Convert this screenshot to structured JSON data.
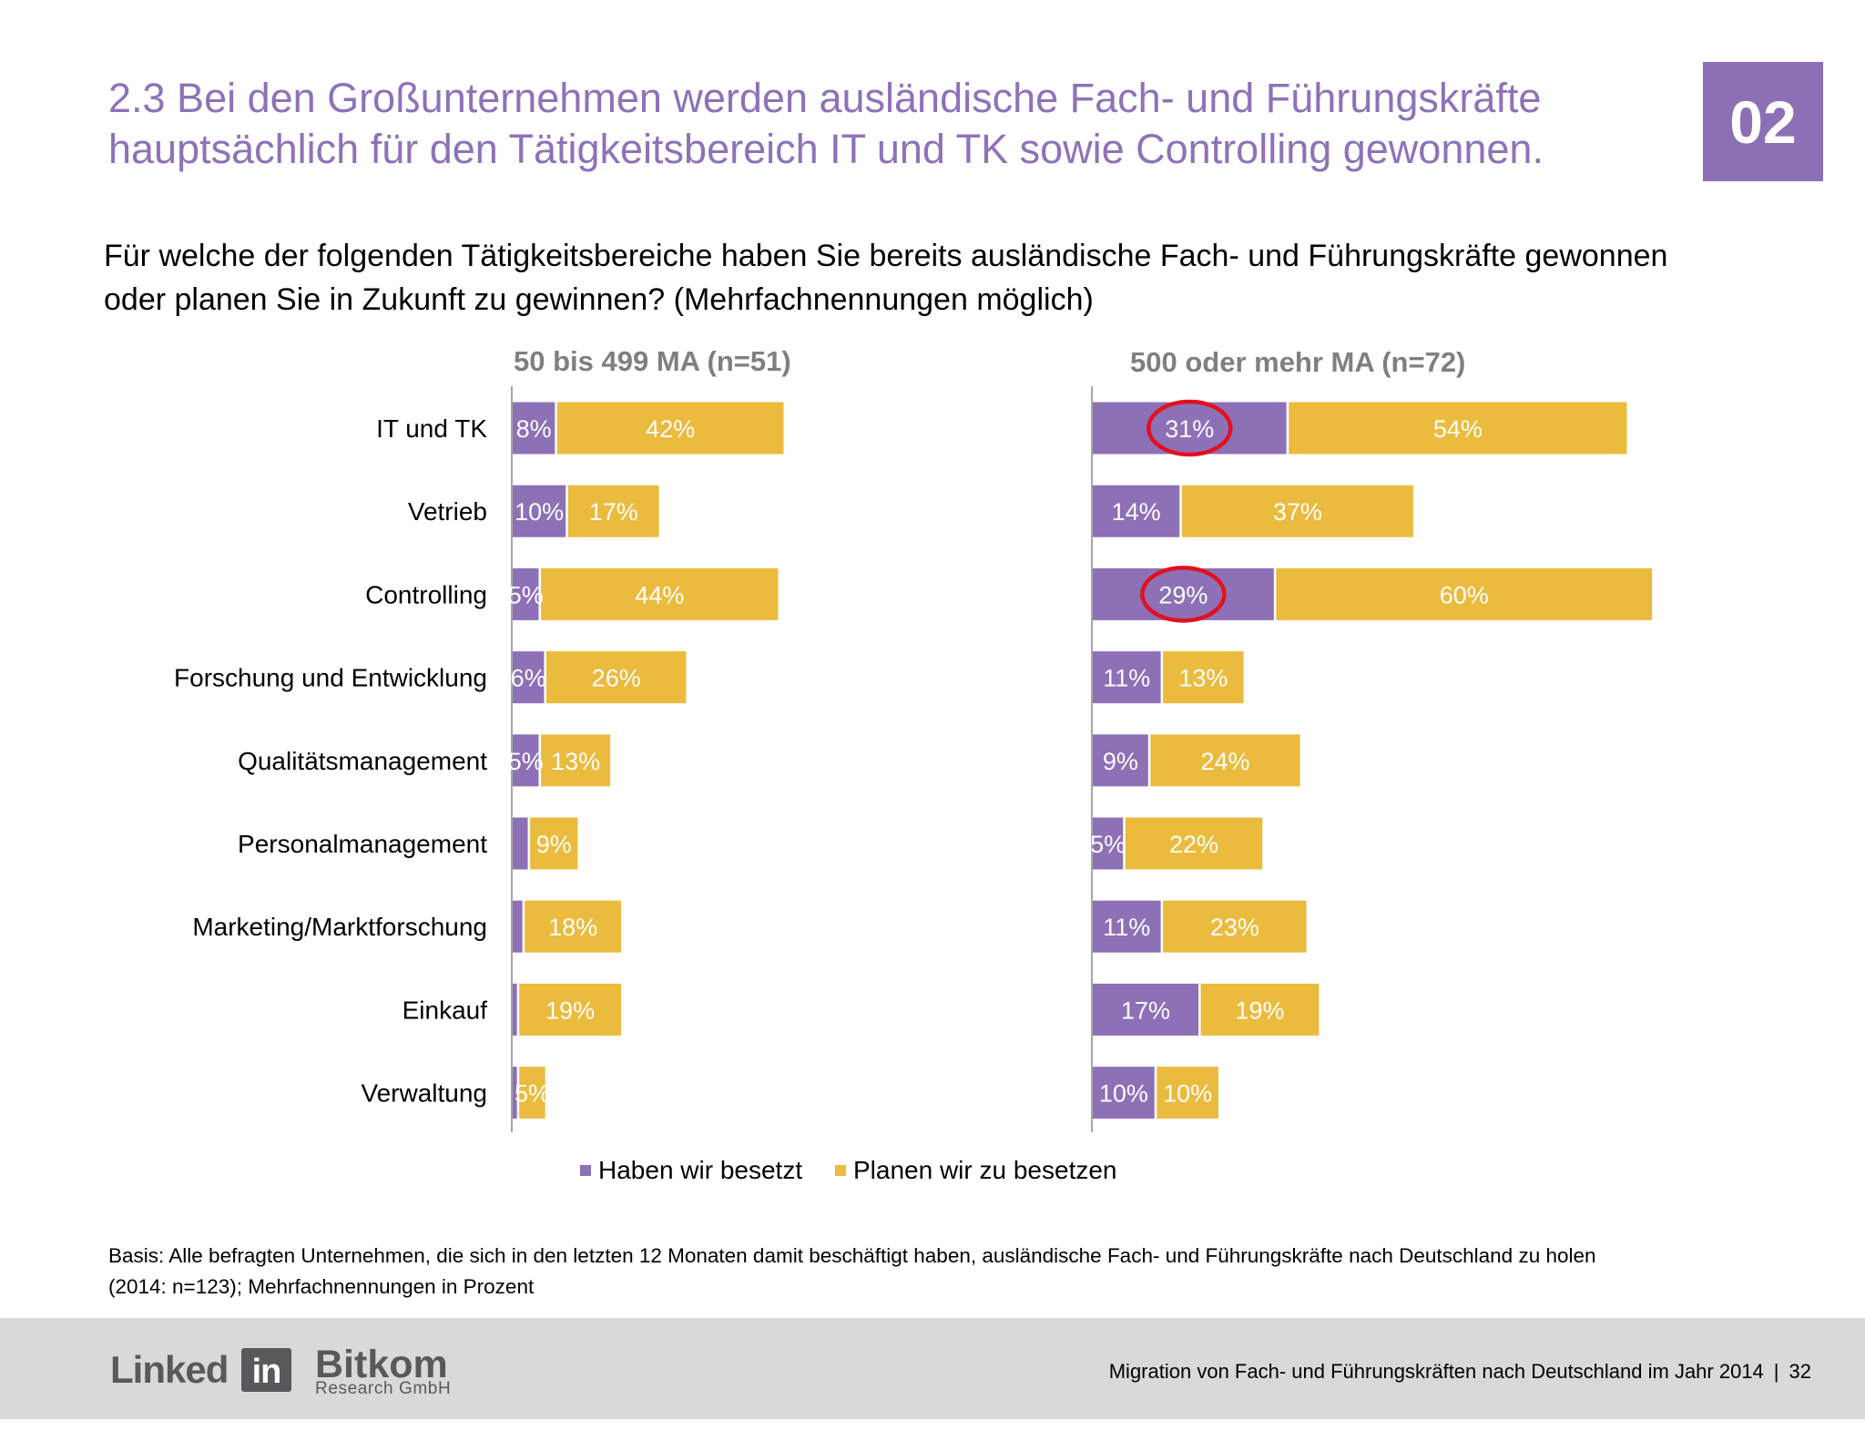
{
  "header": {
    "title_line1": "2.3 Bei den Großunternehmen werden ausländische Fach- und Führungskräfte",
    "title_line2": "hauptsächlich für den Tätigkeitsbereich IT und TK sowie Controlling gewonnen.",
    "section_badge": "02"
  },
  "question": {
    "line1": "Für welche der folgenden Tätigkeitsbereiche haben Sie bereits ausländische Fach- und Führungskräfte gewonnen",
    "line2": "oder planen Sie in Zukunft zu gewinnen? (Mehrfachnennungen möglich)"
  },
  "colors": {
    "accent_purple": "#8c6fb5",
    "haben": "#8e70b6",
    "planen": "#ebbb3e",
    "highlight_red": "#e2101d",
    "footer_band": "#d9d9d9"
  },
  "chart_data": {
    "type": "bar",
    "orientation": "horizontal",
    "stacked": true,
    "unit": "%",
    "legend": "bottom",
    "grid": false,
    "categories": [
      "IT und TK",
      "Vetrieb",
      "Controlling",
      "Forschung und Entwicklung",
      "Qualitätsmanagement",
      "Personalmanagement",
      "Marketing/Marktforschung",
      "Einkauf",
      "Verwaltung"
    ],
    "panels": [
      {
        "title": "50 bis 499 MA (n=51)",
        "xlim": [
          0,
          100
        ],
        "series": [
          {
            "name": "Haben wir besetzt",
            "values": [
              8,
              10,
              5,
              6,
              5,
              3,
              2,
              1,
              1
            ],
            "labels": [
              "8%",
              "10%",
              "5%",
              "6%",
              "5%",
              "",
              "",
              "",
              ""
            ]
          },
          {
            "name": "Planen wir zu besetzen",
            "values": [
              42,
              17,
              44,
              26,
              13,
              9,
              18,
              19,
              5
            ],
            "labels": [
              "42%",
              "17%",
              "44%",
              "26%",
              "13%",
              "9%",
              "18%",
              "19%",
              "5%"
            ]
          }
        ],
        "highlights": []
      },
      {
        "title": "500 oder mehr MA (n=72)",
        "xlim": [
          0,
          100
        ],
        "series": [
          {
            "name": "Haben wir besetzt",
            "values": [
              31,
              14,
              29,
              11,
              9,
              5,
              11,
              17,
              10
            ],
            "labels": [
              "31%",
              "14%",
              "29%",
              "11%",
              "9%",
              "5%",
              "11%",
              "17%",
              "10%"
            ]
          },
          {
            "name": "Planen wir zu besetzen",
            "values": [
              54,
              37,
              60,
              13,
              24,
              22,
              23,
              19,
              10
            ],
            "labels": [
              "54%",
              "37%",
              "60%",
              "13%",
              "24%",
              "22%",
              "23%",
              "19%",
              "10%"
            ]
          }
        ],
        "highlights": [
          {
            "category": "IT und TK",
            "series": "Haben wir besetzt"
          },
          {
            "category": "Controlling",
            "series": "Haben wir besetzt"
          }
        ]
      }
    ]
  },
  "footnote": {
    "line1": "Basis: Alle befragten Unternehmen, die sich in den letzten 12 Monaten damit beschäftigt haben, ausländische Fach- und Führungskräfte nach Deutschland zu holen",
    "line2": "(2014: n=123); Mehrfachnennungen in Prozent"
  },
  "footer": {
    "logo_linkedin_word": "Linked",
    "logo_linkedin_box": "in",
    "logo_bitkom_name": "Bitkom",
    "logo_bitkom_sub": "Research GmbH",
    "document_title": "Migration von Fach- und Führungskräften nach Deutschland im Jahr 2014",
    "separator": "|",
    "page_number": "32"
  }
}
